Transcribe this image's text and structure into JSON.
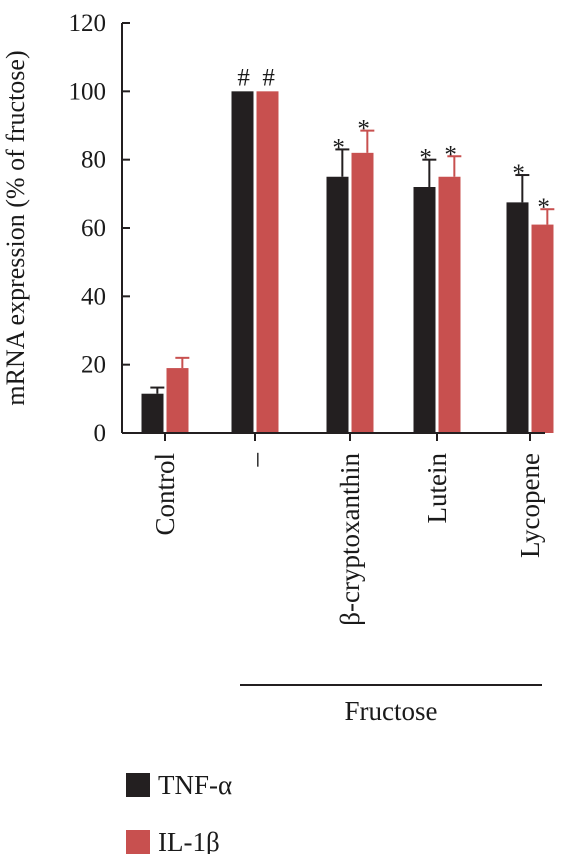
{
  "chart_data": {
    "type": "bar",
    "ylabel": "mRNA expression (% of fructose)",
    "xlabel": "",
    "ylim": [
      0,
      120
    ],
    "yticks": [
      0,
      20,
      40,
      60,
      80,
      100,
      120
    ],
    "categories": [
      "Control",
      "–",
      "β-cryptoxanthin",
      "Lutein",
      "Lycopene"
    ],
    "series": [
      {
        "name": "TNF-α",
        "color": "#231f20",
        "values": [
          11.5,
          100,
          75,
          72,
          67.5
        ],
        "errors": [
          1.8,
          0,
          8,
          8,
          8
        ],
        "annotations": [
          "",
          "#",
          "*",
          "*",
          "*"
        ]
      },
      {
        "name": "IL-1β",
        "color": "#c8504f",
        "values": [
          19,
          100,
          82,
          75,
          61
        ],
        "errors": [
          3,
          0,
          6.5,
          6,
          4.5
        ],
        "annotations": [
          "",
          "#",
          "*",
          "*",
          "*"
        ]
      }
    ],
    "group": {
      "label": "Fructose",
      "categories": [
        "–",
        "β-cryptoxanthin",
        "Lutein",
        "Lycopene"
      ]
    },
    "legend_position": "bottom-left",
    "grid": false
  }
}
